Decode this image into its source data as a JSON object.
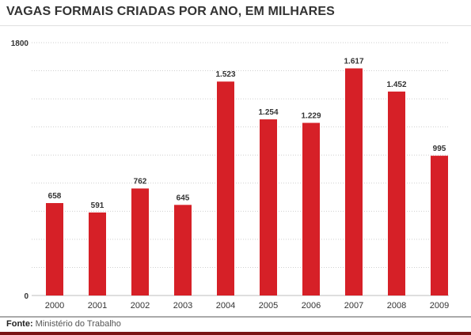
{
  "chart_data": {
    "type": "bar",
    "title": "VAGAS FORMAIS CRIADAS POR ANO, EM MILHARES",
    "categories": [
      "2000",
      "2001",
      "2002",
      "2003",
      "2004",
      "2005",
      "2006",
      "2007",
      "2008",
      "2009"
    ],
    "values": [
      658,
      591,
      762,
      645,
      1523,
      1254,
      1229,
      1617,
      1452,
      995
    ],
    "value_labels": [
      "658",
      "591",
      "762",
      "645",
      "1.523",
      "1.254",
      "1.229",
      "1.617",
      "1.452",
      "995"
    ],
    "ylim": [
      0,
      1800
    ],
    "ytick_labels": [
      "0",
      "1800"
    ],
    "xlabel": "",
    "ylabel": "",
    "grid": true,
    "bar_color": "#d62027"
  },
  "footer": {
    "source_label": "Fonte:",
    "source_text": "Ministério do Trabalho"
  }
}
